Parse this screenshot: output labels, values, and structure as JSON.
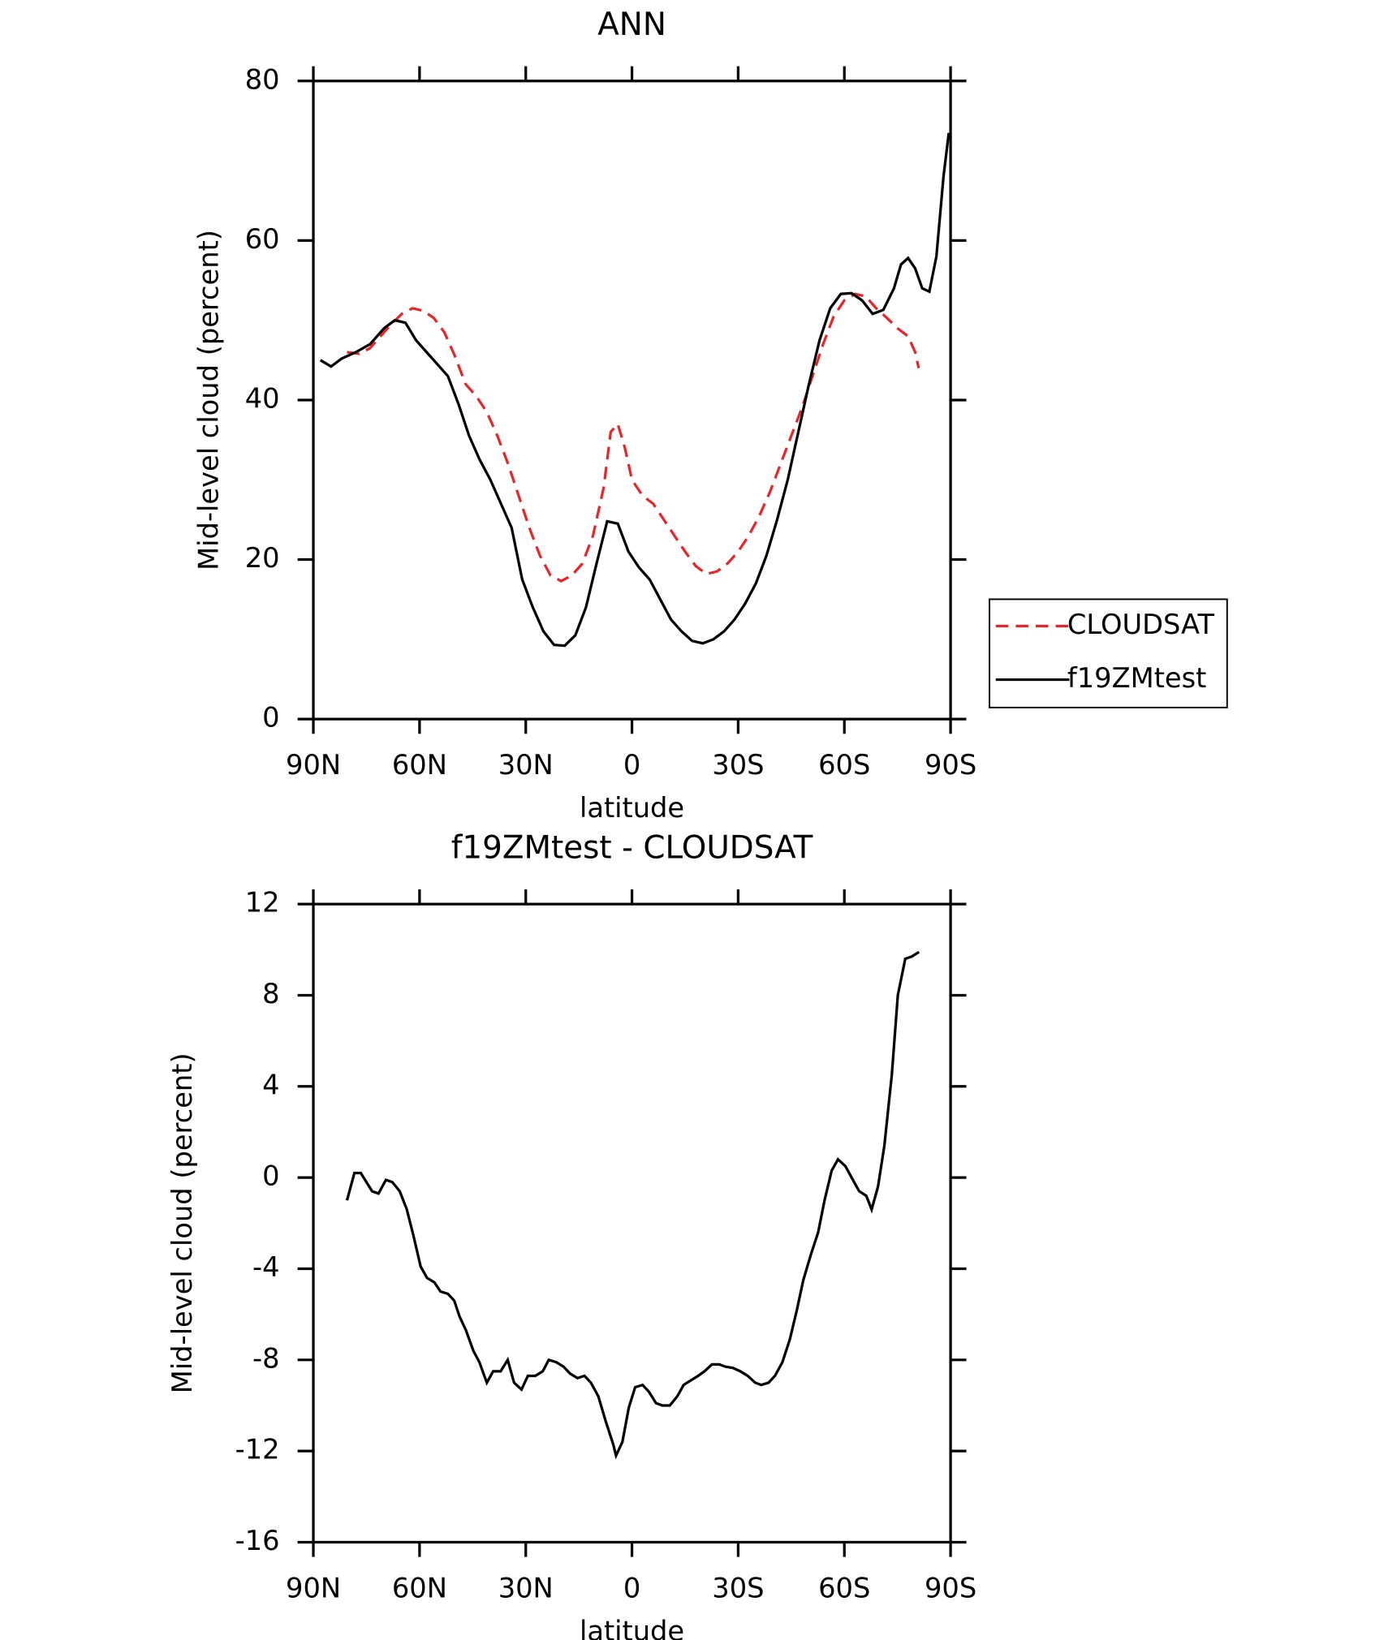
{
  "chart_data": [
    {
      "type": "line",
      "title": "ANN",
      "xlabel": "latitude",
      "ylabel": "Mid-level cloud (percent)",
      "xlim": [
        90,
        -90
      ],
      "xticks": [
        {
          "value": 90,
          "label": "90N"
        },
        {
          "value": 60,
          "label": "60N"
        },
        {
          "value": 30,
          "label": "30N"
        },
        0,
        {
          "value": -30,
          "label": "30S"
        },
        {
          "value": -60,
          "label": "60S"
        },
        {
          "value": -90,
          "label": "90S"
        }
      ],
      "ylim": [
        0,
        80
      ],
      "yticks": [
        0,
        20,
        40,
        60,
        80
      ],
      "legend": "right",
      "series": [
        {
          "name": "CLOUDSAT",
          "color": "#e8262a",
          "dash": true,
          "x": [
            80.5,
            77,
            74,
            71,
            68,
            65,
            62,
            59,
            56,
            53,
            50,
            47,
            44,
            41,
            38,
            35,
            32,
            29,
            26,
            23,
            20,
            17,
            14,
            11,
            8,
            6,
            4,
            2,
            0,
            -3,
            -6,
            -9,
            -12,
            -15,
            -18,
            -21,
            -24,
            -27,
            -30,
            -33,
            -36,
            -39,
            -42,
            -45,
            -48,
            -51,
            -54,
            -57,
            -60,
            -63,
            -66,
            -69,
            -72,
            -75,
            -78,
            -80,
            -81
          ],
          "values": [
            46,
            45.8,
            46.5,
            48,
            49.5,
            50.8,
            51.5,
            51.2,
            50.3,
            48.5,
            45.5,
            42,
            40.5,
            38.5,
            35.5,
            32,
            28,
            24,
            20.5,
            18,
            17.3,
            18,
            19.5,
            23,
            29,
            36,
            37,
            34,
            30,
            28,
            27,
            25,
            23,
            21,
            19.2,
            18.2,
            18.5,
            19.5,
            21,
            23,
            25.5,
            28.5,
            32,
            35.5,
            39,
            43,
            47,
            50.5,
            52.5,
            53.3,
            53,
            51.5,
            50.3,
            49,
            48,
            46,
            44
          ]
        },
        {
          "name": "f19ZMtest",
          "color": "#000000",
          "dash": false,
          "x": [
            88,
            85,
            82,
            78,
            74,
            70,
            67,
            64,
            61,
            58,
            55,
            52,
            49,
            46,
            43,
            40,
            37,
            34,
            31,
            28,
            25,
            22,
            19,
            16,
            13,
            10,
            7,
            4,
            1,
            -2,
            -5,
            -8,
            -11,
            -14,
            -17,
            -20,
            -23,
            -26,
            -29,
            -32,
            -35,
            -38,
            -41,
            -44,
            -47,
            -50,
            -53,
            -56,
            -59,
            -62,
            -65,
            -68,
            -71,
            -74,
            -76,
            -78,
            -80,
            -82,
            -84,
            -86,
            -88,
            -89.5
          ],
          "values": [
            45,
            44.2,
            45.2,
            46,
            47,
            49,
            50,
            49.7,
            47.5,
            46,
            44.5,
            43,
            39.5,
            35.5,
            32.5,
            30,
            27,
            24,
            17.5,
            14,
            11,
            9.3,
            9.2,
            10.5,
            14,
            19.5,
            24.8,
            24.5,
            21,
            19,
            17.5,
            15,
            12.5,
            11,
            9.8,
            9.5,
            10,
            11,
            12.5,
            14.5,
            17,
            20.5,
            25,
            30,
            36,
            42,
            47.5,
            51.5,
            53.3,
            53.4,
            52.5,
            50.8,
            51.3,
            54,
            57,
            57.8,
            56.5,
            54,
            53.6,
            58,
            68,
            73.5
          ]
        }
      ]
    },
    {
      "type": "line",
      "title": "f19ZMtest - CLOUDSAT",
      "xlabel": "latitude",
      "ylabel": "Mid-level cloud (percent)",
      "xlim": [
        90,
        -90
      ],
      "xticks": [
        {
          "value": 90,
          "label": "90N"
        },
        {
          "value": 60,
          "label": "60N"
        },
        {
          "value": 30,
          "label": "30N"
        },
        0,
        {
          "value": -30,
          "label": "30S"
        },
        {
          "value": -60,
          "label": "60S"
        },
        {
          "value": -90,
          "label": "90S"
        }
      ],
      "ylim": [
        -16,
        12
      ],
      "yticks": [
        -16,
        -12,
        -8,
        -4,
        0,
        4,
        8,
        12
      ],
      "series": [
        {
          "color": "#000000",
          "x": [
            80.5,
            78.4,
            76.6,
            73.4,
            71.6,
            69.5,
            67.7,
            65.6,
            63.6,
            61.8,
            59.7,
            57.9,
            55.8,
            54.1,
            52.0,
            50.2,
            48.7,
            46.9,
            44.8,
            43.1,
            41.0,
            39.2,
            37.1,
            35.1,
            33.3,
            31.2,
            29.4,
            27.3,
            25.2,
            23.5,
            21.4,
            19.3,
            17.5,
            15.4,
            13.4,
            11.6,
            9.5,
            7.4,
            5.3,
            4.5,
            2.7,
            0.9,
            -0.9,
            -3.0,
            -4.8,
            -6.8,
            -8.6,
            -10.7,
            -12.8,
            -14.6,
            -16.6,
            -18.7,
            -20.5,
            -22.6,
            -24.7,
            -26.4,
            -28.5,
            -30.6,
            -32.7,
            -34.8,
            -36.5,
            -38.6,
            -40.4,
            -42.5,
            -44.6,
            -46.6,
            -48.4,
            -50.5,
            -52.6,
            -54.4,
            -56.4,
            -58.2,
            -60.3,
            -62.4,
            -64.2,
            -66.2,
            -67.7,
            -69.5,
            -71.3,
            -73.4,
            -75.1,
            -77.2,
            -79.0,
            -81.1
          ],
          "values": [
            -1,
            0.2,
            0.2,
            -0.6,
            -0.7,
            -0.1,
            -0.2,
            -0.6,
            -1.4,
            -2.5,
            -3.9,
            -4.4,
            -4.6,
            -5.0,
            -5.1,
            -5.4,
            -6.1,
            -6.7,
            -7.6,
            -8.1,
            -9.0,
            -8.5,
            -8.5,
            -8.0,
            -9.0,
            -9.3,
            -8.7,
            -8.7,
            -8.5,
            -8.0,
            -8.1,
            -8.3,
            -8.6,
            -8.8,
            -8.7,
            -9.0,
            -9.6,
            -10.7,
            -11.7,
            -12.2,
            -11.6,
            -10.1,
            -9.2,
            -9.1,
            -9.4,
            -9.9,
            -10.0,
            -10.0,
            -9.6,
            -9.1,
            -8.9,
            -8.7,
            -8.5,
            -8.2,
            -8.2,
            -8.3,
            -8.35,
            -8.5,
            -8.7,
            -9.0,
            -9.1,
            -9.0,
            -8.7,
            -8.1,
            -7.1,
            -5.8,
            -4.5,
            -3.4,
            -2.4,
            -1.0,
            0.3,
            0.8,
            0.5,
            -0.1,
            -0.6,
            -0.8,
            -1.4,
            -0.4,
            1.4,
            4.5,
            8.0,
            9.6,
            9.7,
            9.9
          ]
        }
      ]
    }
  ]
}
